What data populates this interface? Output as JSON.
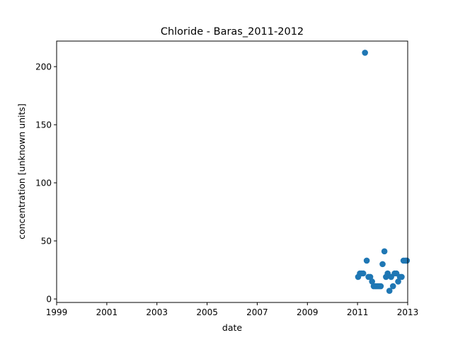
{
  "chart_data": {
    "type": "scatter",
    "title": "Chloride - Baras_2011-2012",
    "xlabel": "date",
    "ylabel": "concentration [unknown units]",
    "xlim": [
      "1999-01-01",
      "2013-01-01"
    ],
    "ylim": [
      -3,
      222
    ],
    "x_ticks": [
      "1999",
      "2001",
      "2003",
      "2005",
      "2007",
      "2009",
      "2011",
      "2013"
    ],
    "y_ticks": [
      "0",
      "50",
      "100",
      "150",
      "200"
    ],
    "grid": false,
    "legend": "none",
    "marker_color": "#1f77b4",
    "series": [
      {
        "x": [
          "2011-01-10",
          "2011-02-05",
          "2011-03-01",
          "2011-03-25",
          "2011-04-20",
          "2011-05-15",
          "2011-06-10",
          "2011-07-05",
          "2011-08-01",
          "2011-08-25",
          "2011-09-20",
          "2011-10-15",
          "2011-11-10",
          "2011-12-05",
          "2012-01-01",
          "2012-01-28",
          "2012-02-20",
          "2012-03-15",
          "2012-04-10",
          "2012-05-05",
          "2012-06-01",
          "2012-06-25",
          "2012-07-20",
          "2012-08-15",
          "2012-09-10",
          "2012-10-05",
          "2012-11-01",
          "2012-11-28",
          "2012-12-20"
        ],
        "y": [
          19,
          22,
          22,
          22,
          212,
          33,
          19,
          19,
          15,
          11,
          11,
          11,
          11,
          11,
          30,
          41,
          19,
          22,
          7,
          19,
          11,
          22,
          22,
          15,
          19,
          19,
          33,
          33,
          33
        ]
      }
    ]
  }
}
